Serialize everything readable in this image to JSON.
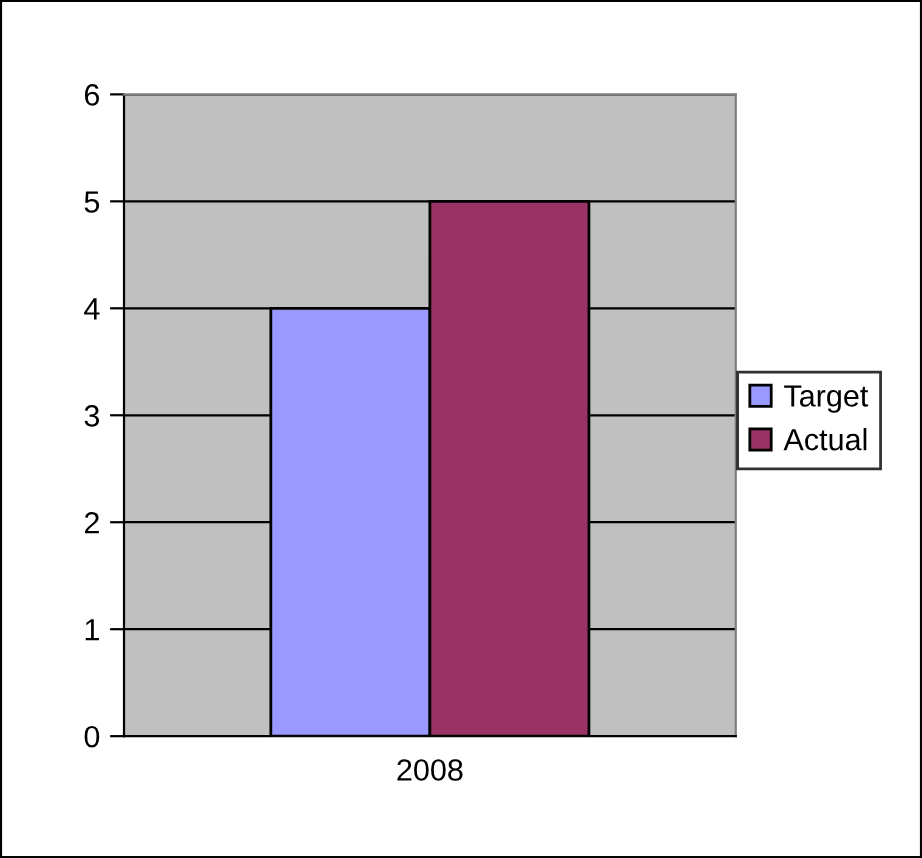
{
  "chart_data": {
    "type": "bar",
    "categories": [
      "2008"
    ],
    "series": [
      {
        "name": "Target",
        "color": "#9999ff",
        "values": [
          4
        ]
      },
      {
        "name": "Actual",
        "color": "#993366",
        "values": [
          5
        ]
      }
    ],
    "ylim": [
      0,
      6
    ],
    "yticks": [
      0,
      1,
      2,
      3,
      4,
      5,
      6
    ],
    "grid": "y",
    "legend": "right"
  }
}
